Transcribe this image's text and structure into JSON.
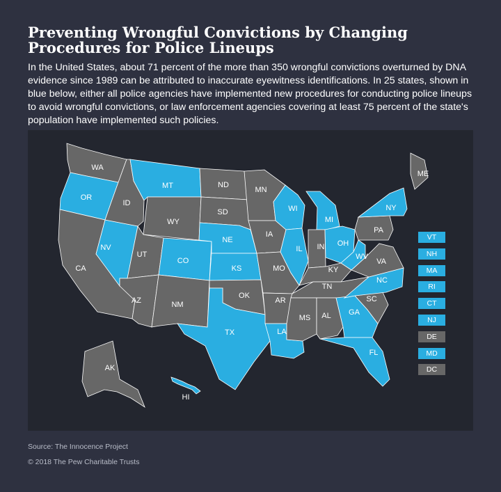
{
  "title": "Preventing Wrongful Convictions by Changing Procedures for Police Lineups",
  "intro": "In the United States, about 71 percent of the more than 350 wrongful convictions overturned by DNA evidence since 1989 can be attributed to inaccurate eyewitness identifications. In 25 states, shown in blue below, either all police agencies have implemented new procedures for conducting police lineups to avoid wrongful convictions, or law enforcement agencies covering at least 75 percent of the state's population have implemented such policies.",
  "colors": {
    "implemented": "#2aaee1",
    "not_implemented": "#676767",
    "background": "#2e3140",
    "map_panel": "#23262f"
  },
  "map": {
    "states": [
      {
        "abbr": "WA",
        "implemented": false
      },
      {
        "abbr": "OR",
        "implemented": true
      },
      {
        "abbr": "CA",
        "implemented": false
      },
      {
        "abbr": "NV",
        "implemented": true
      },
      {
        "abbr": "ID",
        "implemented": false
      },
      {
        "abbr": "MT",
        "implemented": true
      },
      {
        "abbr": "WY",
        "implemented": false
      },
      {
        "abbr": "UT",
        "implemented": false
      },
      {
        "abbr": "AZ",
        "implemented": false
      },
      {
        "abbr": "CO",
        "implemented": true
      },
      {
        "abbr": "NM",
        "implemented": false
      },
      {
        "abbr": "ND",
        "implemented": false
      },
      {
        "abbr": "SD",
        "implemented": false
      },
      {
        "abbr": "NE",
        "implemented": true
      },
      {
        "abbr": "KS",
        "implemented": true
      },
      {
        "abbr": "OK",
        "implemented": false
      },
      {
        "abbr": "TX",
        "implemented": true
      },
      {
        "abbr": "MN",
        "implemented": false
      },
      {
        "abbr": "IA",
        "implemented": false
      },
      {
        "abbr": "MO",
        "implemented": false
      },
      {
        "abbr": "AR",
        "implemented": false
      },
      {
        "abbr": "LA",
        "implemented": true
      },
      {
        "abbr": "WI",
        "implemented": true
      },
      {
        "abbr": "IL",
        "implemented": true
      },
      {
        "abbr": "MI",
        "implemented": true
      },
      {
        "abbr": "IN",
        "implemented": false
      },
      {
        "abbr": "OH",
        "implemented": true
      },
      {
        "abbr": "KY",
        "implemented": false
      },
      {
        "abbr": "TN",
        "implemented": false
      },
      {
        "abbr": "MS",
        "implemented": false
      },
      {
        "abbr": "AL",
        "implemented": false
      },
      {
        "abbr": "GA",
        "implemented": true
      },
      {
        "abbr": "FL",
        "implemented": true
      },
      {
        "abbr": "SC",
        "implemented": false
      },
      {
        "abbr": "NC",
        "implemented": true
      },
      {
        "abbr": "VA",
        "implemented": false
      },
      {
        "abbr": "WV",
        "implemented": true
      },
      {
        "abbr": "PA",
        "implemented": false
      },
      {
        "abbr": "NY",
        "implemented": true
      },
      {
        "abbr": "ME",
        "implemented": false
      },
      {
        "abbr": "AK",
        "implemented": false
      },
      {
        "abbr": "HI",
        "implemented": true
      }
    ],
    "legend_states": [
      {
        "abbr": "VT",
        "implemented": true
      },
      {
        "abbr": "NH",
        "implemented": true
      },
      {
        "abbr": "MA",
        "implemented": true
      },
      {
        "abbr": "RI",
        "implemented": true
      },
      {
        "abbr": "CT",
        "implemented": true
      },
      {
        "abbr": "NJ",
        "implemented": true
      },
      {
        "abbr": "DE",
        "implemented": false
      },
      {
        "abbr": "MD",
        "implemented": true
      },
      {
        "abbr": "DC",
        "implemented": false
      }
    ]
  },
  "source": "Source: The Innocence Project",
  "copyright": "© 2018 The Pew Charitable Trusts"
}
